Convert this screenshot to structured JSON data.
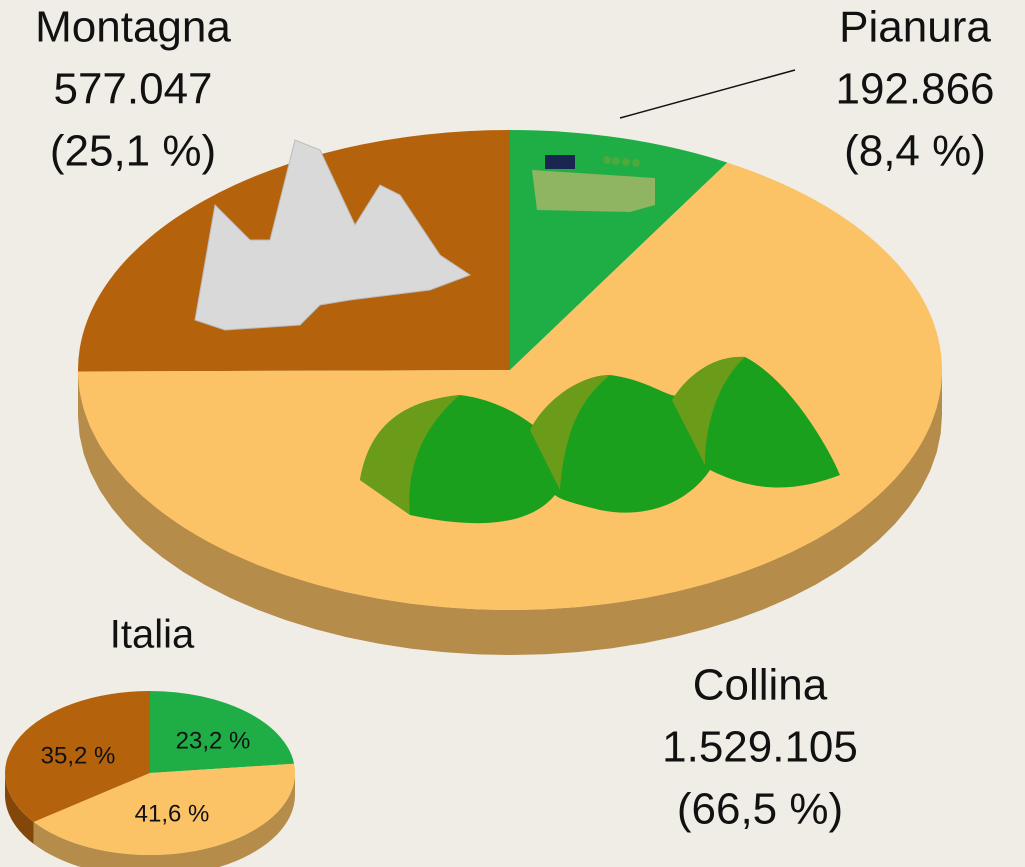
{
  "chart_data": [
    {
      "type": "pie",
      "categories": [
        "Montagna",
        "Pianura",
        "Collina"
      ],
      "values": [
        577047,
        192866,
        1529105
      ],
      "value_labels": [
        "577.047",
        "192.866",
        "1.529.105"
      ],
      "percent_values": [
        25.1,
        8.4,
        66.5
      ],
      "percent_labels": [
        "(25,1 %)",
        "(8,4 %)",
        "(66,5 %)"
      ],
      "colors": [
        "#b5620c",
        "#1fae45",
        "#fcc266"
      ]
    },
    {
      "type": "pie",
      "title": "Italia",
      "values": [
        35.2,
        23.2,
        41.6
      ],
      "value_labels": [
        "35,2 %",
        "23,2 %",
        "41,6 %"
      ],
      "colors": [
        "#b5620c",
        "#1fae45",
        "#fcc266"
      ]
    }
  ]
}
